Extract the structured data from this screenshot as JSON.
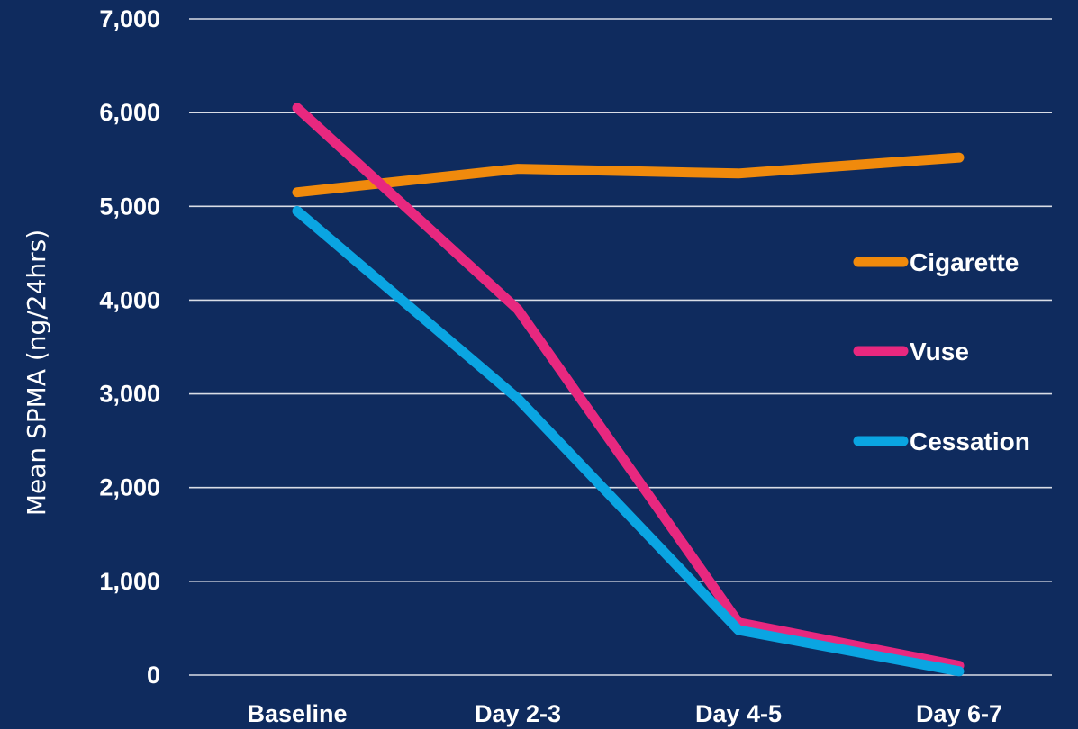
{
  "chart_data": {
    "type": "line",
    "title": "",
    "xlabel": "",
    "ylabel": "Mean SPMA (ng/24hrs)",
    "categories": [
      "Baseline",
      "Day 2-3",
      "Day 4-5",
      "Day 6-7"
    ],
    "ylim": [
      0,
      7000
    ],
    "yticks": [
      0,
      1000,
      2000,
      3000,
      4000,
      5000,
      6000,
      7000
    ],
    "ytick_labels": [
      "0",
      "1,000",
      "2,000",
      "3,000",
      "4,000",
      "5,000",
      "6,000",
      "7,000"
    ],
    "grid": true,
    "legend_position": "right",
    "background_color": "#0f2b5e",
    "series": [
      {
        "name": "Cigarette",
        "color": "#f08a0c",
        "values": [
          5150,
          5400,
          5350,
          5520
        ]
      },
      {
        "name": "Vuse",
        "color": "#e8287f",
        "values": [
          6050,
          3900,
          560,
          100
        ]
      },
      {
        "name": "Cessation",
        "color": "#0aa5e2",
        "values": [
          4950,
          2950,
          480,
          40
        ]
      }
    ]
  }
}
